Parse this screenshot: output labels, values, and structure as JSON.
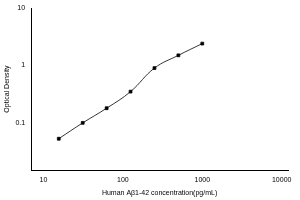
{
  "chart_data": {
    "type": "line",
    "x_label": "Human Aβ1-42 concentration(pg/mL)",
    "y_label": "Optical Density",
    "x": [
      15.6,
      31.25,
      62.5,
      125,
      250,
      500,
      1000
    ],
    "values": [
      0.053,
      0.1,
      0.18,
      0.35,
      0.9,
      1.5,
      2.4
    ],
    "color": "#000000",
    "marker": "square",
    "line_style": "solid",
    "log": true,
    "grid": false,
    "xlim": [
      7,
      12000
    ],
    "xticks": [
      10,
      100,
      1000,
      10000
    ],
    "ylim": [
      0.015,
      10
    ],
    "yticks": [
      0.1,
      1,
      10
    ]
  }
}
